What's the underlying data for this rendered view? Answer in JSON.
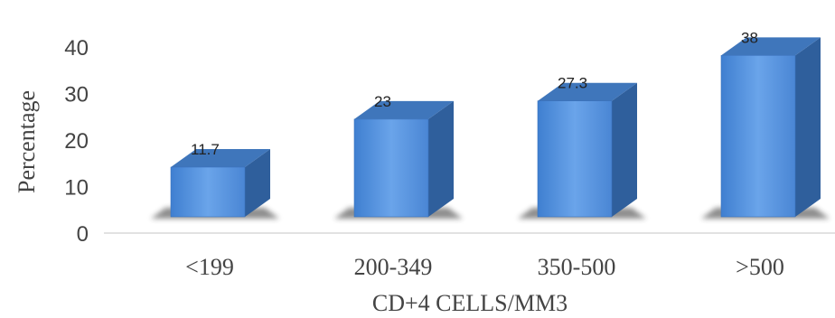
{
  "chart_data": {
    "type": "bar",
    "style": "3d-column",
    "categories": [
      "<199",
      "200-349",
      "350-500",
      ">500"
    ],
    "values": [
      11.7,
      23,
      27.3,
      38
    ],
    "data_labels": [
      "11.7",
      "23",
      "27.3",
      "38"
    ],
    "xlabel": "CD+4 CELLS/MM3",
    "ylabel": "Percentage",
    "ylim": [
      0,
      40
    ],
    "yticks": [
      "0",
      "10",
      "20",
      "30",
      "40"
    ],
    "grid": false,
    "legend": "none",
    "colors": {
      "bar_front": "#4f8fdc",
      "bar_top": "#3f76bb",
      "bar_side": "#2f5f9c",
      "axis_line": "#d9d9d9"
    }
  }
}
